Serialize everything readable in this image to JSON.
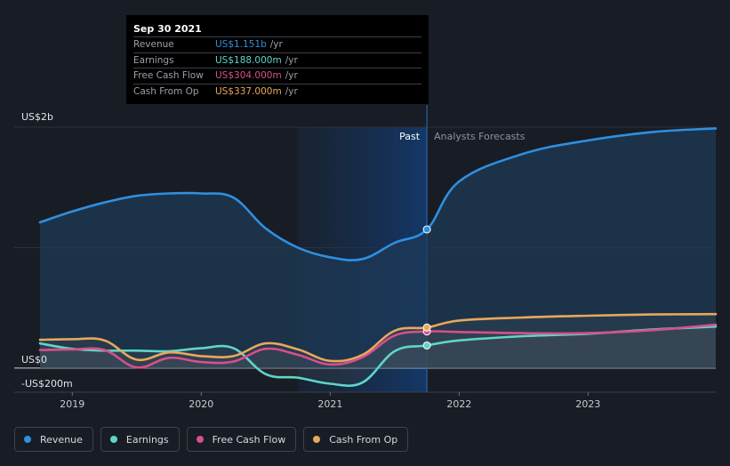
{
  "tooltip": {
    "date": "Sep 30 2021",
    "rows": [
      {
        "label": "Revenue",
        "value": "US$1.151b",
        "unit": "/yr",
        "color": "#2f8fe0"
      },
      {
        "label": "Earnings",
        "value": "US$188.000m",
        "unit": "/yr",
        "color": "#5ed6c8"
      },
      {
        "label": "Free Cash Flow",
        "value": "US$304.000m",
        "unit": "/yr",
        "color": "#d94f8b"
      },
      {
        "label": "Cash From Op",
        "value": "US$337.000m",
        "unit": "/yr",
        "color": "#e8a85c"
      }
    ]
  },
  "legend": [
    {
      "label": "Revenue",
      "color": "#2f8fe0"
    },
    {
      "label": "Earnings",
      "color": "#5ed6c8"
    },
    {
      "label": "Free Cash Flow",
      "color": "#d94f8b"
    },
    {
      "label": "Cash From Op",
      "color": "#e8a85c"
    }
  ],
  "chart_data": {
    "type": "line",
    "y_tick_labels": [
      {
        "value": 2000,
        "label": "US$2b"
      },
      {
        "value": 0,
        "label": "US$0"
      },
      {
        "value": -200,
        "label": "-US$200m"
      }
    ],
    "x_tick_labels": [
      {
        "value": 2019,
        "label": "2019"
      },
      {
        "value": 2020,
        "label": "2020"
      },
      {
        "value": 2021,
        "label": "2021"
      },
      {
        "value": 2022,
        "label": "2022"
      },
      {
        "value": 2023,
        "label": "2023"
      }
    ],
    "ylim": [
      -200,
      2000
    ],
    "xlim": [
      2018.55,
      2023.99
    ],
    "divider_x": 2021.75,
    "shade_start_x": 2020.75,
    "past_label": "Past",
    "forecast_label": "Analysts Forecasts",
    "highlight_x": 2021.75,
    "series": [
      {
        "name": "Revenue",
        "color": "#2f8fe0",
        "fill": "#1c3a57",
        "points": [
          [
            2018.75,
            1210
          ],
          [
            2019.0,
            1300
          ],
          [
            2019.25,
            1375
          ],
          [
            2019.5,
            1430
          ],
          [
            2019.75,
            1450
          ],
          [
            2020.0,
            1450
          ],
          [
            2020.25,
            1415
          ],
          [
            2020.5,
            1160
          ],
          [
            2020.75,
            1000
          ],
          [
            2021.0,
            920
          ],
          [
            2021.25,
            905
          ],
          [
            2021.5,
            1040
          ],
          [
            2021.75,
            1151
          ],
          [
            2022.0,
            1550
          ],
          [
            2022.5,
            1780
          ],
          [
            2023.0,
            1890
          ],
          [
            2023.5,
            1960
          ],
          [
            2023.99,
            1990
          ]
        ]
      },
      {
        "name": "Earnings",
        "color": "#5ed6c8",
        "points": [
          [
            2018.75,
            205
          ],
          [
            2019.0,
            160
          ],
          [
            2019.25,
            145
          ],
          [
            2019.5,
            145
          ],
          [
            2019.75,
            140
          ],
          [
            2020.0,
            165
          ],
          [
            2020.25,
            165
          ],
          [
            2020.5,
            -50
          ],
          [
            2020.75,
            -80
          ],
          [
            2021.0,
            -130
          ],
          [
            2021.25,
            -120
          ],
          [
            2021.5,
            140
          ],
          [
            2021.75,
            188
          ],
          [
            2022.0,
            230
          ],
          [
            2022.5,
            265
          ],
          [
            2023.0,
            285
          ],
          [
            2023.5,
            320
          ],
          [
            2023.99,
            345
          ]
        ]
      },
      {
        "name": "Free Cash Flow",
        "color": "#d94f8b",
        "points": [
          [
            2018.75,
            150
          ],
          [
            2019.0,
            155
          ],
          [
            2019.25,
            150
          ],
          [
            2019.5,
            5
          ],
          [
            2019.75,
            85
          ],
          [
            2020.0,
            50
          ],
          [
            2020.25,
            55
          ],
          [
            2020.5,
            160
          ],
          [
            2020.75,
            110
          ],
          [
            2021.0,
            30
          ],
          [
            2021.25,
            90
          ],
          [
            2021.5,
            270
          ],
          [
            2021.75,
            304
          ],
          [
            2022.0,
            300
          ],
          [
            2022.5,
            290
          ],
          [
            2023.0,
            290
          ],
          [
            2023.5,
            315
          ],
          [
            2023.99,
            360
          ]
        ]
      },
      {
        "name": "Cash From Op",
        "color": "#e8a85c",
        "points": [
          [
            2018.75,
            235
          ],
          [
            2019.0,
            240
          ],
          [
            2019.25,
            230
          ],
          [
            2019.5,
            70
          ],
          [
            2019.75,
            130
          ],
          [
            2020.0,
            100
          ],
          [
            2020.25,
            100
          ],
          [
            2020.5,
            205
          ],
          [
            2020.75,
            155
          ],
          [
            2021.0,
            60
          ],
          [
            2021.25,
            110
          ],
          [
            2021.5,
            310
          ],
          [
            2021.75,
            337
          ],
          [
            2022.0,
            395
          ],
          [
            2022.5,
            420
          ],
          [
            2023.0,
            435
          ],
          [
            2023.5,
            445
          ],
          [
            2023.99,
            448
          ]
        ]
      }
    ]
  }
}
